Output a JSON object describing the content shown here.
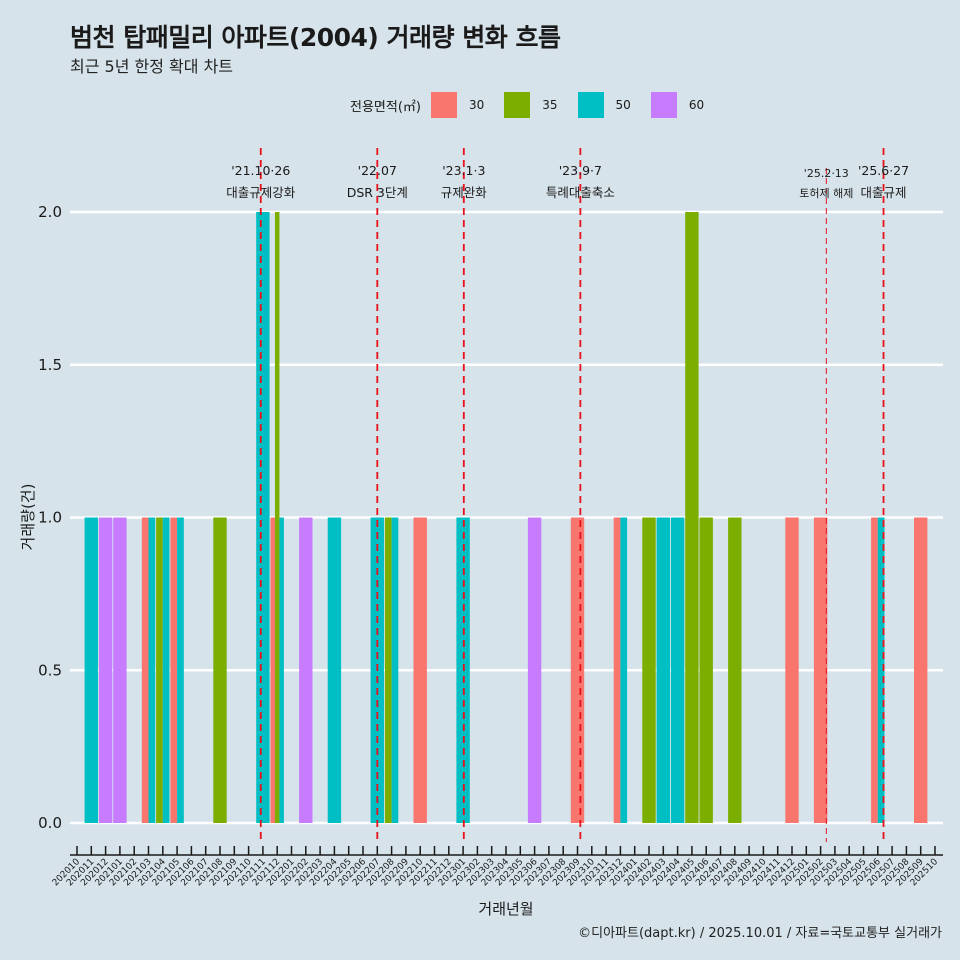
{
  "header": {
    "title": "범천 탑패밀리 아파트(2004) 거래량 변화 흐름",
    "subtitle": "최근 5년 한정 확대 차트"
  },
  "legend": {
    "title": "전용면적(㎡)",
    "items": [
      {
        "label": "30",
        "color": "#F8766D"
      },
      {
        "label": "35",
        "color": "#7CAE00"
      },
      {
        "label": "50",
        "color": "#00BFC4"
      },
      {
        "label": "60",
        "color": "#C77CFF"
      }
    ]
  },
  "caption": "©디아파트(dapt.kr) / 2025.10.01 / 자료=국토교통부 실거래가",
  "chart_data": {
    "type": "bar",
    "title": "범천 탑패밀리 아파트(2004) 거래량 변화 흐름",
    "subtitle": "최근 5년 한정 확대 차트",
    "xlabel": "거래년월",
    "ylabel": "거래량(건)",
    "ylim": [
      0,
      2
    ],
    "yticks": [
      "0.0",
      "0.5",
      "1.0",
      "1.5",
      "2.0"
    ],
    "ytick_values": [
      0,
      0.5,
      1.0,
      1.5,
      2.0
    ],
    "grid": true,
    "legend_position": "top",
    "categories": [
      "202010",
      "202011",
      "202012",
      "202101",
      "202102",
      "202103",
      "202104",
      "202105",
      "202106",
      "202107",
      "202108",
      "202109",
      "202110",
      "202111",
      "202112",
      "202201",
      "202202",
      "202203",
      "202204",
      "202205",
      "202206",
      "202207",
      "202208",
      "202209",
      "202210",
      "202211",
      "202212",
      "202301",
      "202302",
      "202303",
      "202304",
      "202305",
      "202306",
      "202307",
      "202308",
      "202309",
      "202310",
      "202311",
      "202312",
      "202401",
      "202402",
      "202403",
      "202404",
      "202405",
      "202406",
      "202407",
      "202408",
      "202409",
      "202410",
      "202411",
      "202412",
      "202501",
      "202502",
      "202503",
      "202504",
      "202505",
      "202506",
      "202507",
      "202508",
      "202509",
      "202510"
    ],
    "bars": [
      {
        "month": "202011",
        "series": [
          {
            "area": "50",
            "value": 1
          }
        ]
      },
      {
        "month": "202012",
        "series": [
          {
            "area": "60",
            "value": 1
          }
        ]
      },
      {
        "month": "202101",
        "series": [
          {
            "area": "60",
            "value": 1
          }
        ]
      },
      {
        "month": "202103",
        "series": [
          {
            "area": "30",
            "value": 1
          },
          {
            "area": "50",
            "value": 1
          }
        ]
      },
      {
        "month": "202104",
        "series": [
          {
            "area": "35",
            "value": 1
          },
          {
            "area": "50",
            "value": 1
          }
        ]
      },
      {
        "month": "202105",
        "series": [
          {
            "area": "30",
            "value": 1
          },
          {
            "area": "50",
            "value": 1
          }
        ]
      },
      {
        "month": "202108",
        "series": [
          {
            "area": "35",
            "value": 1
          }
        ]
      },
      {
        "month": "202111",
        "series": [
          {
            "area": "50",
            "value": 2
          }
        ]
      },
      {
        "month": "202112",
        "series": [
          {
            "area": "30",
            "value": 1
          },
          {
            "area": "35",
            "value": 2
          },
          {
            "area": "50",
            "value": 1
          }
        ]
      },
      {
        "month": "202202",
        "series": [
          {
            "area": "60",
            "value": 1
          }
        ]
      },
      {
        "month": "202204",
        "series": [
          {
            "area": "50",
            "value": 1
          }
        ]
      },
      {
        "month": "202207",
        "series": [
          {
            "area": "50",
            "value": 1
          }
        ]
      },
      {
        "month": "202208",
        "series": [
          {
            "area": "35",
            "value": 1
          },
          {
            "area": "50",
            "value": 1
          }
        ]
      },
      {
        "month": "202210",
        "series": [
          {
            "area": "30",
            "value": 1
          }
        ]
      },
      {
        "month": "202301",
        "series": [
          {
            "area": "50",
            "value": 1
          }
        ]
      },
      {
        "month": "202306",
        "series": [
          {
            "area": "60",
            "value": 1
          }
        ]
      },
      {
        "month": "202309",
        "series": [
          {
            "area": "30",
            "value": 1
          }
        ]
      },
      {
        "month": "202312",
        "series": [
          {
            "area": "30",
            "value": 1
          },
          {
            "area": "50",
            "value": 1
          }
        ]
      },
      {
        "month": "202402",
        "series": [
          {
            "area": "35",
            "value": 1
          }
        ]
      },
      {
        "month": "202403",
        "series": [
          {
            "area": "50",
            "value": 1
          }
        ]
      },
      {
        "month": "202404",
        "series": [
          {
            "area": "50",
            "value": 1
          }
        ]
      },
      {
        "month": "202405",
        "series": [
          {
            "area": "35",
            "value": 2
          }
        ]
      },
      {
        "month": "202406",
        "series": [
          {
            "area": "35",
            "value": 1
          }
        ]
      },
      {
        "month": "202408",
        "series": [
          {
            "area": "35",
            "value": 1
          }
        ]
      },
      {
        "month": "202412",
        "series": [
          {
            "area": "30",
            "value": 1
          }
        ]
      },
      {
        "month": "202502",
        "series": [
          {
            "area": "30",
            "value": 1
          }
        ]
      },
      {
        "month": "202506",
        "series": [
          {
            "area": "30",
            "value": 1
          },
          {
            "area": "50",
            "value": 1
          }
        ]
      },
      {
        "month": "202509",
        "series": [
          {
            "area": "30",
            "value": 1
          }
        ]
      }
    ],
    "annotations": [
      {
        "month_pos": 12.85,
        "date": "'21.10·26",
        "label": "대출규제강화",
        "style": "bold"
      },
      {
        "month_pos": 21.0,
        "date": "'22.07",
        "label": "DSR 3단계",
        "style": "bold"
      },
      {
        "month_pos": 27.05,
        "date": "'23.1·3",
        "label": "규제완화",
        "style": "bold"
      },
      {
        "month_pos": 35.2,
        "date": "'23.9·7",
        "label": "특례대출축소",
        "style": "bold"
      },
      {
        "month_pos": 52.4,
        "date": "'25.2·13",
        "label": "토허제 해제",
        "style": "thin"
      },
      {
        "month_pos": 56.4,
        "date": "'25.6·27",
        "label": "대출규제",
        "style": "bold"
      }
    ],
    "annotation_color": "#E8101A"
  }
}
